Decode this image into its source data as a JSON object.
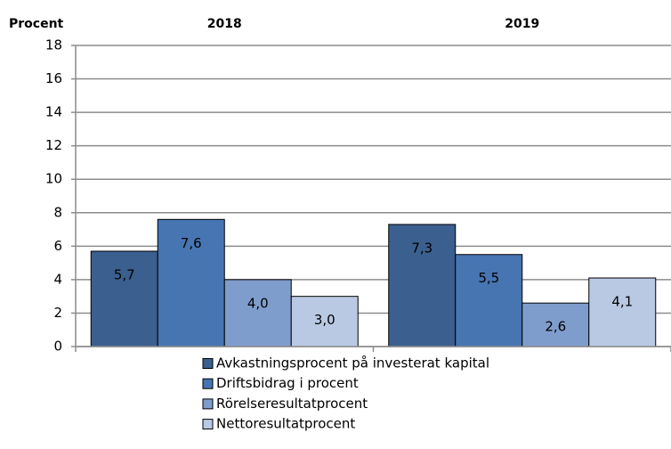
{
  "chart_data": {
    "type": "bar",
    "y_label": "Procent",
    "categories": [
      "2018",
      "2019"
    ],
    "series": [
      {
        "name": "Avkastningsprocent på investerat kapital",
        "color": "#3b5f8e",
        "values": [
          5.7,
          7.3
        ],
        "value_labels": [
          "5,7",
          "7,3"
        ]
      },
      {
        "name": "Driftsbidrag i procent",
        "color": "#4775b2",
        "values": [
          7.6,
          5.5
        ],
        "value_labels": [
          "7,6",
          "5,5"
        ]
      },
      {
        "name": "Rörelseresultatprocent",
        "color": "#7f9dcc",
        "values": [
          4.0,
          2.6
        ],
        "value_labels": [
          "4,0",
          "2,6"
        ]
      },
      {
        "name": "Nettoresultatprocent",
        "color": "#b9c9e4",
        "values": [
          3.0,
          4.1
        ],
        "value_labels": [
          "3,0",
          "4,1"
        ]
      }
    ],
    "ylim": [
      0,
      18
    ],
    "yticks": [
      0,
      2,
      4,
      6,
      8,
      10,
      12,
      14,
      16,
      18
    ],
    "grid": true,
    "legend": "bottom"
  }
}
